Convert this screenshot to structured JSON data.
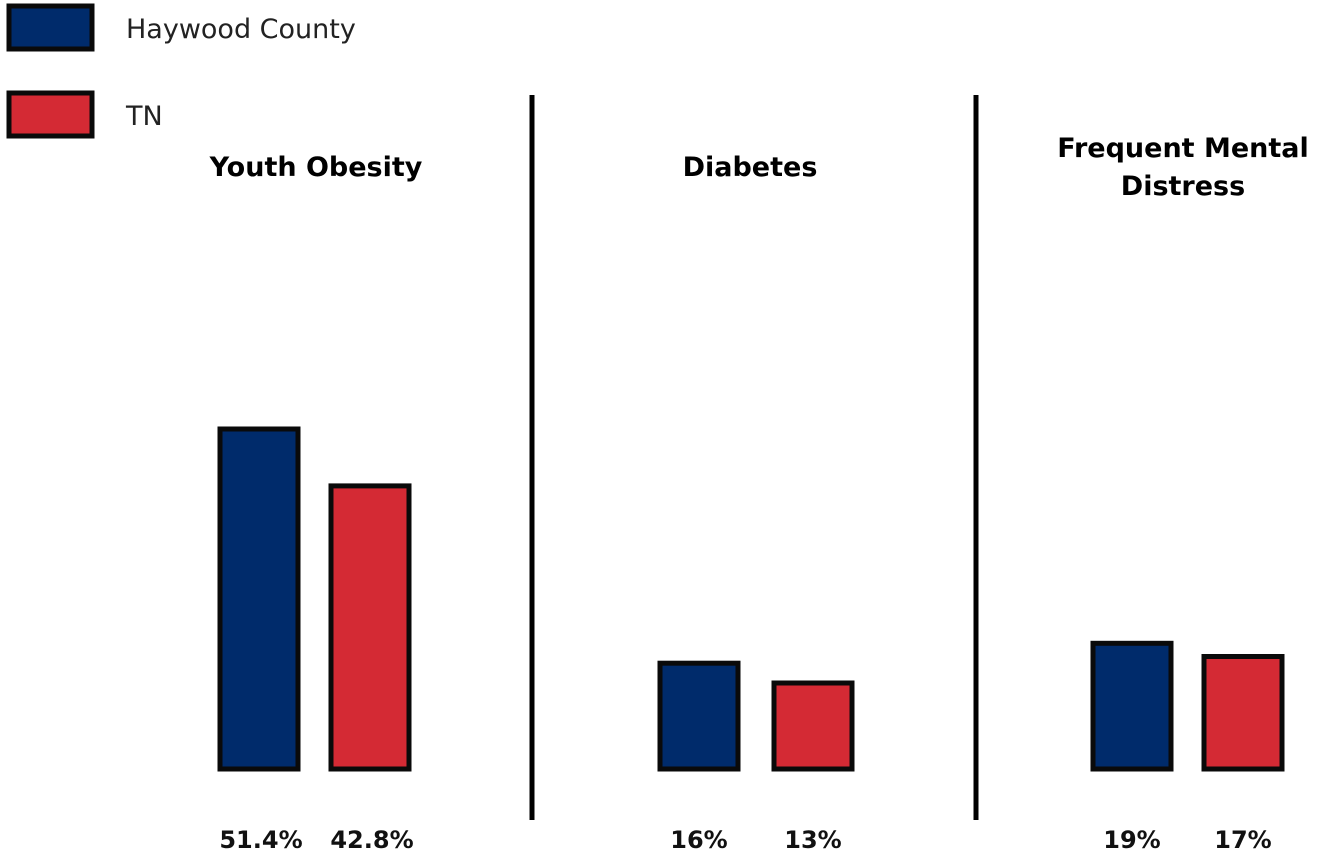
{
  "chart_data": {
    "type": "bar",
    "legend": [
      {
        "name": "Haywood County",
        "color": "#002B6B"
      },
      {
        "name": "TN",
        "color": "#D42A34"
      }
    ],
    "ylim": [
      0,
      60
    ],
    "grid": false,
    "legend_position": "top-left",
    "panels": [
      {
        "title": "Youth Obesity",
        "values": [
          51.4,
          42.8
        ],
        "labels": [
          "51.4%",
          "42.8%"
        ]
      },
      {
        "title": "Diabetes",
        "values": [
          16,
          13
        ],
        "labels": [
          "16%",
          "13%"
        ]
      },
      {
        "title": "Frequent Mental Distress",
        "values": [
          19,
          17
        ],
        "labels": [
          "19%",
          "17%"
        ]
      }
    ]
  },
  "colors": {
    "haywood": "#002B6B",
    "tn": "#D42A34",
    "border": "#0a0a0a"
  }
}
